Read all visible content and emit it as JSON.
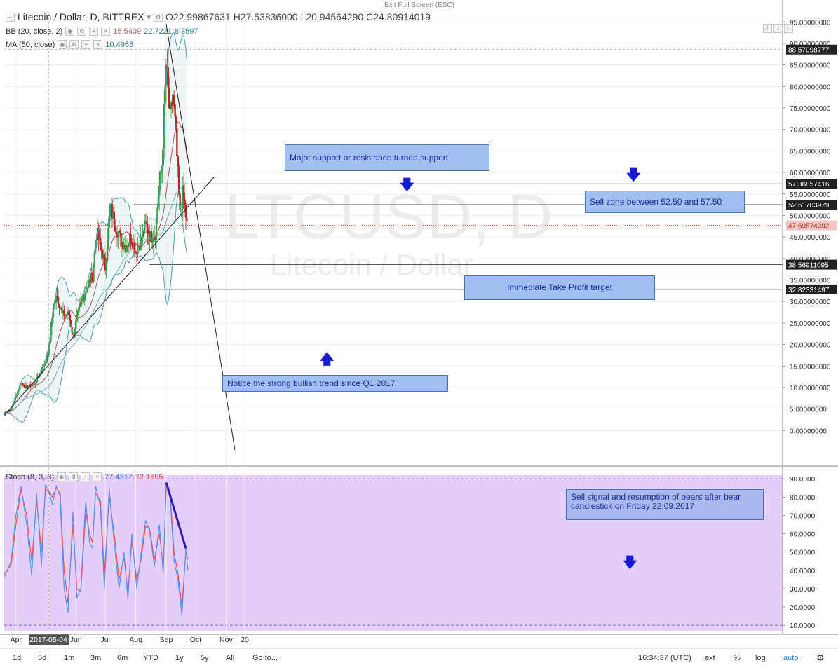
{
  "header": {
    "symbol": "Litecoin / Dollar, D, BITTREX",
    "open": "O22.99867631",
    "high": "H27.53836000",
    "low": "L20.94564290",
    "close": "C24.80914019",
    "bb_label": "BB (20, close, 2)",
    "bb_values": [
      "15.5409",
      "22.7221",
      "8.3597"
    ],
    "ma_label": "MA (50, close)",
    "ma_value": "10.4968",
    "stoch_label": "Stoch (8, 3, 3)",
    "stoch_k": "77.4317",
    "stoch_d": "72.1895"
  },
  "exit_fullscreen": "Exit Full Screen (ESC)",
  "watermark": {
    "symbol": "LTCUSD, D",
    "name": "Litecoin / Dollar"
  },
  "colors": {
    "candle_up": "#3f9a48",
    "candle_down": "#b42a22",
    "bb": "#4f9ea8",
    "ma": "#a85a5a",
    "stoch_k": "#5a8ff0",
    "stoch_d": "#e85050",
    "stoch_bg": "#e4cefa",
    "note_bg": "#9fc0f1",
    "arrow": "#1419d6"
  },
  "price_axis": {
    "ticks": [
      "95.00000000",
      "90.00000000",
      "85.00000000",
      "80.00000000",
      "75.00000000",
      "70.00000000",
      "65.00000000",
      "60.00000000",
      "55.00000000",
      "50.00000000",
      "45.00000000",
      "40.00000000",
      "35.00000000",
      "30.00000000",
      "25.00000000",
      "20.00000000",
      "15.00000000",
      "10.00000000",
      "5.00000000",
      "0.00000000"
    ],
    "labels": [
      {
        "text": "88.57098777",
        "value": 88.57,
        "style": "dark"
      },
      {
        "text": "57.36857416",
        "value": 57.37,
        "style": "dark"
      },
      {
        "text": "52.51783979",
        "value": 52.52,
        "style": "dark"
      },
      {
        "text": "47.69574392",
        "value": 47.7,
        "style": "red"
      },
      {
        "text": "38.56911095",
        "value": 38.57,
        "style": "dark"
      },
      {
        "text": "32.82331497",
        "value": 32.82,
        "style": "dark"
      }
    ]
  },
  "stoch_axis": {
    "ticks": [
      "90.0000",
      "80.0000",
      "70.0000",
      "60.0000",
      "50.0000",
      "40.0000",
      "30.0000",
      "20.0000",
      "10.0000"
    ]
  },
  "time_axis": {
    "labels": [
      "Apr",
      "2017-05-04",
      "Jun",
      "Jul",
      "Aug",
      "Sep",
      "Oct",
      "Nov",
      "20"
    ]
  },
  "annotations": {
    "support": "Major support or resistance turned support",
    "sell_zone": "Sell zone between 52.50 and 57.50",
    "take_profit": "Immediate Take Profit target",
    "trend": "Notice the strong bullish trend since Q1 2017",
    "sell_signal": "Sell signal and resumption of bears after bear candlestick on Friday 22.09.2017"
  },
  "toolbar": {
    "ranges": [
      "1d",
      "5d",
      "1m",
      "3m",
      "6m",
      "YTD",
      "1y",
      "5y",
      "All",
      "Go to..."
    ],
    "time": "16:34:37 (UTC)",
    "options": [
      "ext",
      "%",
      "log",
      "auto"
    ]
  },
  "chart_data": {
    "type": "candlestick",
    "symbol": "LTCUSD",
    "interval": "D",
    "ylim": [
      -5,
      97
    ],
    "stoch_ylim": [
      7,
      92
    ],
    "date_range": [
      "2017-03-20",
      "2017-09-23"
    ],
    "price_path": [
      [
        "2017-03-20",
        4
      ],
      [
        "2017-03-27",
        5
      ],
      [
        "2017-04-01",
        8
      ],
      [
        "2017-04-06",
        11
      ],
      [
        "2017-04-12",
        10
      ],
      [
        "2017-04-20",
        11
      ],
      [
        "2017-04-27",
        14
      ],
      [
        "2017-05-04",
        18
      ],
      [
        "2017-05-07",
        25
      ],
      [
        "2017-05-12",
        32
      ],
      [
        "2017-05-18",
        27
      ],
      [
        "2017-05-25",
        27
      ],
      [
        "2017-05-29",
        22
      ],
      [
        "2017-06-03",
        27
      ],
      [
        "2017-06-08",
        31
      ],
      [
        "2017-06-14",
        34
      ],
      [
        "2017-06-18",
        36
      ],
      [
        "2017-06-22",
        46
      ],
      [
        "2017-06-27",
        42
      ],
      [
        "2017-07-01",
        38
      ],
      [
        "2017-07-06",
        52
      ],
      [
        "2017-07-11",
        48
      ],
      [
        "2017-07-17",
        44
      ],
      [
        "2017-07-22",
        43
      ],
      [
        "2017-07-27",
        45
      ],
      [
        "2017-08-01",
        42
      ],
      [
        "2017-08-06",
        44
      ],
      [
        "2017-08-11",
        48
      ],
      [
        "2017-08-16",
        45
      ],
      [
        "2017-08-21",
        46
      ],
      [
        "2017-08-24",
        55
      ],
      [
        "2017-08-28",
        62
      ],
      [
        "2017-09-01",
        85
      ],
      [
        "2017-09-05",
        72
      ],
      [
        "2017-09-08",
        78
      ],
      [
        "2017-09-11",
        68
      ],
      [
        "2017-09-15",
        50
      ],
      [
        "2017-09-18",
        55
      ],
      [
        "2017-09-20",
        52
      ],
      [
        "2017-09-22",
        47.7
      ]
    ],
    "trendlines": [
      {
        "name": "uptrend-support",
        "points": [
          [
            "2017-03-20",
            3.5
          ],
          [
            "2017-10-20",
            59
          ]
        ]
      },
      {
        "name": "downtrend",
        "points": [
          [
            "2017-09-01",
            94.5
          ],
          [
            "2017-11-10",
            -4.5
          ]
        ]
      }
    ],
    "levels": [
      57.37,
      52.52,
      38.57,
      32.82,
      88.57
    ],
    "stoch_k": [
      [
        "2017-03-20",
        36
      ],
      [
        "2017-03-27",
        45
      ],
      [
        "2017-04-01",
        70
      ],
      [
        "2017-04-06",
        86
      ],
      [
        "2017-04-12",
        65
      ],
      [
        "2017-04-17",
        37
      ],
      [
        "2017-04-22",
        82
      ],
      [
        "2017-04-27",
        42
      ],
      [
        "2017-05-01",
        87
      ],
      [
        "2017-05-05",
        82
      ],
      [
        "2017-05-08",
        76
      ],
      [
        "2017-05-12",
        86
      ],
      [
        "2017-05-16",
        80
      ],
      [
        "2017-05-20",
        30
      ],
      [
        "2017-05-24",
        17
      ],
      [
        "2017-05-29",
        72
      ],
      [
        "2017-06-02",
        25
      ],
      [
        "2017-06-06",
        30
      ],
      [
        "2017-06-11",
        78
      ],
      [
        "2017-06-15",
        55
      ],
      [
        "2017-06-18",
        52
      ],
      [
        "2017-06-21",
        86
      ],
      [
        "2017-06-26",
        75
      ],
      [
        "2017-06-30",
        30
      ],
      [
        "2017-07-05",
        85
      ],
      [
        "2017-07-10",
        55
      ],
      [
        "2017-07-15",
        30
      ],
      [
        "2017-07-20",
        50
      ],
      [
        "2017-07-24",
        24
      ],
      [
        "2017-07-28",
        60
      ],
      [
        "2017-08-02",
        30
      ],
      [
        "2017-08-06",
        48
      ],
      [
        "2017-08-11",
        67
      ],
      [
        "2017-08-15",
        62
      ],
      [
        "2017-08-20",
        42
      ],
      [
        "2017-08-25",
        65
      ],
      [
        "2017-08-29",
        38
      ],
      [
        "2017-09-01",
        88
      ],
      [
        "2017-09-05",
        80
      ],
      [
        "2017-09-09",
        45
      ],
      [
        "2017-09-13",
        35
      ],
      [
        "2017-09-17",
        15
      ],
      [
        "2017-09-21",
        52
      ],
      [
        "2017-09-23",
        40
      ]
    ],
    "stoch_d": [
      [
        "2017-03-20",
        38
      ],
      [
        "2017-03-27",
        43
      ],
      [
        "2017-04-01",
        65
      ],
      [
        "2017-04-06",
        84
      ],
      [
        "2017-04-12",
        70
      ],
      [
        "2017-04-17",
        45
      ],
      [
        "2017-04-22",
        78
      ],
      [
        "2017-04-27",
        50
      ],
      [
        "2017-05-01",
        84
      ],
      [
        "2017-05-05",
        83
      ],
      [
        "2017-05-08",
        80
      ],
      [
        "2017-05-12",
        85
      ],
      [
        "2017-05-16",
        82
      ],
      [
        "2017-05-20",
        40
      ],
      [
        "2017-05-24",
        22
      ],
      [
        "2017-05-29",
        65
      ],
      [
        "2017-06-02",
        30
      ],
      [
        "2017-06-06",
        28
      ],
      [
        "2017-06-11",
        72
      ],
      [
        "2017-06-15",
        60
      ],
      [
        "2017-06-18",
        55
      ],
      [
        "2017-06-21",
        82
      ],
      [
        "2017-06-26",
        78
      ],
      [
        "2017-06-30",
        38
      ],
      [
        "2017-07-05",
        80
      ],
      [
        "2017-07-10",
        60
      ],
      [
        "2017-07-15",
        35
      ],
      [
        "2017-07-20",
        47
      ],
      [
        "2017-07-24",
        28
      ],
      [
        "2017-07-28",
        56
      ],
      [
        "2017-08-02",
        35
      ],
      [
        "2017-08-06",
        45
      ],
      [
        "2017-08-11",
        64
      ],
      [
        "2017-08-15",
        63
      ],
      [
        "2017-08-20",
        46
      ],
      [
        "2017-08-25",
        60
      ],
      [
        "2017-08-29",
        42
      ],
      [
        "2017-09-01",
        84
      ],
      [
        "2017-09-05",
        82
      ],
      [
        "2017-09-09",
        50
      ],
      [
        "2017-09-13",
        38
      ],
      [
        "2017-09-17",
        20
      ],
      [
        "2017-09-21",
        50
      ],
      [
        "2017-09-23",
        46
      ]
    ],
    "stoch_signal_line": [
      [
        "2017-09-01",
        88
      ],
      [
        "2017-09-21",
        52
      ]
    ]
  }
}
